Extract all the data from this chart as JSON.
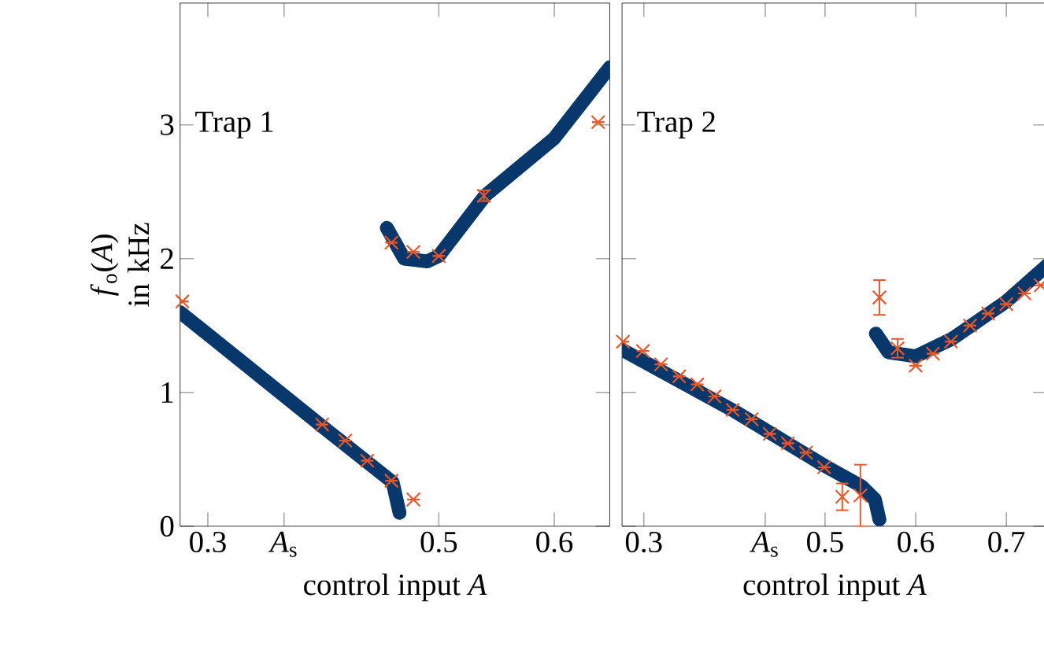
{
  "chart_data": [
    {
      "type": "line",
      "xlabel": "control input *A*",
      "ylabel": "*f*$_{o}$(*A*) in kHz",
      "annotations": [
        "Trap 1"
      ],
      "xlim": [
        0.276,
        0.648
      ],
      "ylim": [
        0,
        3.91
      ],
      "xticks": [
        0.3,
        {
          "value": 0.366,
          "label": "*A*$_{s}$"
        },
        0.5,
        0.6
      ],
      "yticks": [
        0,
        1,
        2,
        3
      ],
      "series": [
        {
          "color": "#08386b",
          "x": [
            0.276,
            0.4,
            0.46,
            0.466
          ],
          "values": [
            1.6,
            0.74,
            0.33,
            0.1
          ]
        },
        {
          "color": "#08386b",
          "x": [
            0.455,
            0.47,
            0.49,
            0.5,
            0.54,
            0.6,
            0.648
          ],
          "values": [
            2.23,
            2.0,
            1.98,
            2.02,
            2.47,
            2.9,
            3.43
          ]
        },
        {
          "type": "scatter",
          "marker": "cross",
          "color": "#e5582a",
          "x": [
            0.278,
            0.399,
            0.419,
            0.438,
            0.459,
            0.478,
            0.459,
            0.478,
            0.5,
            0.539,
            0.638
          ],
          "values": [
            1.68,
            0.76,
            0.64,
            0.49,
            0.34,
            0.2,
            2.12,
            2.05,
            2.02,
            2.47,
            3.02
          ],
          "errors": [
            null,
            null,
            null,
            null,
            null,
            null,
            null,
            null,
            null,
            0.04,
            null
          ]
        }
      ]
    },
    {
      "type": "line",
      "xlabel": "control input *A*",
      "annotations": [
        "Trap 2"
      ],
      "xlim": [
        0.276,
        0.745
      ],
      "ylim": [
        0,
        3.91
      ],
      "xticks": [
        0.3,
        {
          "value": 0.434,
          "label": "*A*$_{s}$"
        },
        0.5,
        0.6,
        0.7
      ],
      "yticks": [
        0,
        1,
        2,
        3
      ],
      "tick_labels": "x",
      "series": [
        {
          "color": "#08386b",
          "x": [
            0.276,
            0.4,
            0.5,
            0.54,
            0.555,
            0.56
          ],
          "values": [
            1.32,
            0.86,
            0.45,
            0.3,
            0.2,
            0.05
          ]
        },
        {
          "color": "#08386b",
          "x": [
            0.556,
            0.57,
            0.6,
            0.64,
            0.7,
            0.745
          ],
          "values": [
            1.44,
            1.3,
            1.27,
            1.4,
            1.68,
            1.95
          ]
        },
        {
          "type": "scatter",
          "marker": "cross",
          "color": "#e5582a",
          "x": [
            0.277,
            0.299,
            0.319,
            0.339,
            0.359,
            0.378,
            0.398,
            0.419,
            0.439,
            0.459,
            0.479,
            0.499,
            0.519,
            0.539,
            0.56,
            0.58,
            0.6,
            0.619,
            0.639,
            0.66,
            0.68,
            0.7,
            0.72,
            0.738
          ],
          "values": [
            1.38,
            1.31,
            1.21,
            1.12,
            1.06,
            0.97,
            0.87,
            0.8,
            0.69,
            0.62,
            0.55,
            0.44,
            0.22,
            0.23,
            1.71,
            1.33,
            1.2,
            1.29,
            1.38,
            1.5,
            1.59,
            1.66,
            1.74,
            1.8
          ],
          "errors": [
            null,
            null,
            null,
            null,
            null,
            null,
            null,
            null,
            null,
            null,
            null,
            null,
            0.1,
            0.23,
            0.13,
            0.07,
            null,
            null,
            null,
            null,
            null,
            null,
            null,
            null
          ]
        }
      ]
    }
  ]
}
